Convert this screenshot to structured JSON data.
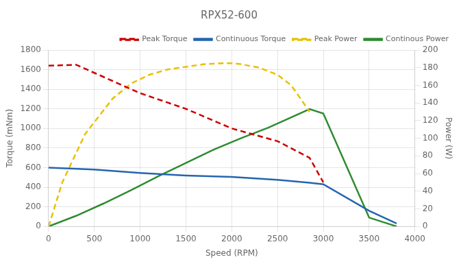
{
  "chart_data": {
    "type": "line",
    "title": "RPX52-600",
    "xlabel": "Speed (RPM)",
    "ylabel": "Torque (mNm)",
    "y2label": "Power (W)",
    "xlim": [
      0,
      4000
    ],
    "xticks": [
      0,
      500,
      1000,
      1500,
      2000,
      2500,
      3000,
      3500,
      4000
    ],
    "ylim": [
      0,
      1800
    ],
    "yticks": [
      0,
      200,
      400,
      600,
      800,
      1000,
      1200,
      1400,
      1600,
      1800
    ],
    "y2lim": [
      0,
      200
    ],
    "y2ticks": [
      0,
      20,
      40,
      60,
      80,
      100,
      120,
      140,
      160,
      180,
      200
    ],
    "grid": true,
    "legend": "upper right",
    "series": [
      {
        "name": "Peak Torque",
        "color": "#cc0000",
        "line_style": "dashed",
        "axis": "y",
        "x": [
          0,
          300,
          1000,
          1500,
          2000,
          2500,
          2850,
          3000
        ],
        "values": [
          1640,
          1650,
          1360,
          1200,
          1000,
          870,
          700,
          450
        ]
      },
      {
        "name": "Continuous Torque",
        "color": "#2565ae",
        "line_style": "solid",
        "axis": "y",
        "x": [
          0,
          500,
          1000,
          1500,
          2000,
          2500,
          2850,
          3000,
          3500,
          3800
        ],
        "values": [
          600,
          580,
          545,
          520,
          505,
          475,
          445,
          430,
          160,
          30
        ]
      },
      {
        "name": "Peak Power",
        "color": "#e8c000",
        "line_style": "dashed",
        "axis": "y2",
        "x": [
          0,
          150,
          400,
          700,
          900,
          1100,
          1300,
          1500,
          1700,
          1900,
          2000,
          2100,
          2300,
          2500,
          2650,
          2850
        ],
        "values": [
          0,
          50,
          105,
          145,
          162,
          172,
          178,
          181,
          184,
          185,
          185,
          184,
          180,
          172,
          160,
          130
        ]
      },
      {
        "name": "Continous Power",
        "color": "#2e8b30",
        "line_style": "solid",
        "axis": "y2",
        "x": [
          0,
          300,
          600,
          900,
          1200,
          1500,
          1800,
          2100,
          2400,
          2850,
          3000,
          3500,
          3800
        ],
        "values": [
          0,
          12,
          26,
          41,
          57,
          72,
          87,
          100,
          112,
          133,
          128,
          10,
          0
        ]
      }
    ]
  }
}
